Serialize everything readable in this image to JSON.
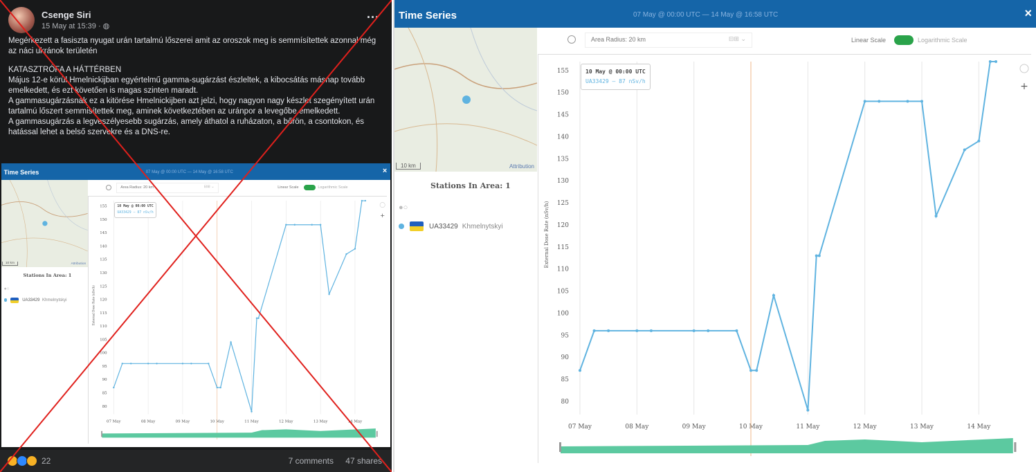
{
  "post": {
    "author": "Csenge Siri",
    "time": "15 May at 15:39 · ",
    "more": "...",
    "paragraphs": [
      "Megérkezett a fasiszta nyugat urán tartalmú lőszerei amit az oroszok meg is semmísítettek azonnal még az náci ukránok területén",
      "",
      "KATASZTRÓFA A HÁTTÉRBEN",
      "Május 12-e körül Hmelnickijban egyértelmű gamma-sugárzást észleltek, a kibocsátás másnap tovább emelkedett, és ezt követően is magas szinten maradt.",
      "A gammasugárzásnak ez a kitörése Hmelnickijben azt jelzi, hogy nagyon nagy készlet szegényített urán tartalmú lőszert semmisítettek meg, aminek következtében az uránpor a levegőbe emelkedett.",
      "A gammasugárzás a legveszélyesebb sugárzás, amely áthatol a ruházaton, a bőrön, a csontokon, és hatással lehet a belső szervekre és a DNS-re."
    ],
    "reaction_count": "22",
    "comments": "7 comments",
    "shares": "47 shares"
  },
  "widget": {
    "title": "Time Series",
    "range": "07 May @ 00:00 UTC — 14 May @ 16:58 UTC",
    "close": "×",
    "area_radius": "Area Radius: 20 km",
    "linear_scale": "Linear Scale",
    "log_scale": "Logarithmic Scale",
    "stations_title": "Stations In Area: 1",
    "station_id": "UA33429",
    "station_name": "Khmelnytskyi",
    "map_scale": "10 km",
    "map_attribution": "Attribution",
    "tooltip_title": "10 May @ 00:00 UTC",
    "tooltip_value": "UA33429 — 87 nSv/h",
    "ylabel": "External Dose Rate (nSv/h)"
  },
  "colors": {
    "accent": "#1565a8",
    "line": "#5fb3e0",
    "toggle": "#2aa34a",
    "cross": "#e0201c",
    "range_fill": "#5cc9a0"
  },
  "chart_data": {
    "type": "line",
    "ylabel": "External Dose Rate (nSv/h)",
    "ylim": [
      77,
      157
    ],
    "yticks": [
      80,
      85,
      90,
      95,
      100,
      105,
      110,
      115,
      120,
      125,
      130,
      135,
      140,
      145,
      150,
      155
    ],
    "xlim": [
      0,
      7.7
    ],
    "xticks": [
      {
        "x": 0,
        "label": "07 May"
      },
      {
        "x": 1,
        "label": "08 May"
      },
      {
        "x": 2,
        "label": "09 May"
      },
      {
        "x": 3,
        "label": "10 May"
      },
      {
        "x": 4,
        "label": "11 May"
      },
      {
        "x": 5,
        "label": "12 May"
      },
      {
        "x": 6,
        "label": "13 May"
      },
      {
        "x": 7,
        "label": "14 May"
      }
    ],
    "marker_x": 3,
    "series": [
      {
        "name": "UA33429",
        "x": [
          0,
          0.25,
          0.5,
          1,
          1.25,
          2,
          2.25,
          2.75,
          3,
          3.1,
          3.4,
          4,
          4.15,
          4.2,
          5,
          5.25,
          5.75,
          6,
          6.25,
          6.75,
          7,
          7.2,
          7.3
        ],
        "y": [
          87,
          96,
          96,
          96,
          96,
          96,
          96,
          96,
          87,
          87,
          104,
          78,
          113,
          113,
          148,
          148,
          148,
          148,
          122,
          137,
          139,
          157,
          157
        ]
      }
    ]
  }
}
